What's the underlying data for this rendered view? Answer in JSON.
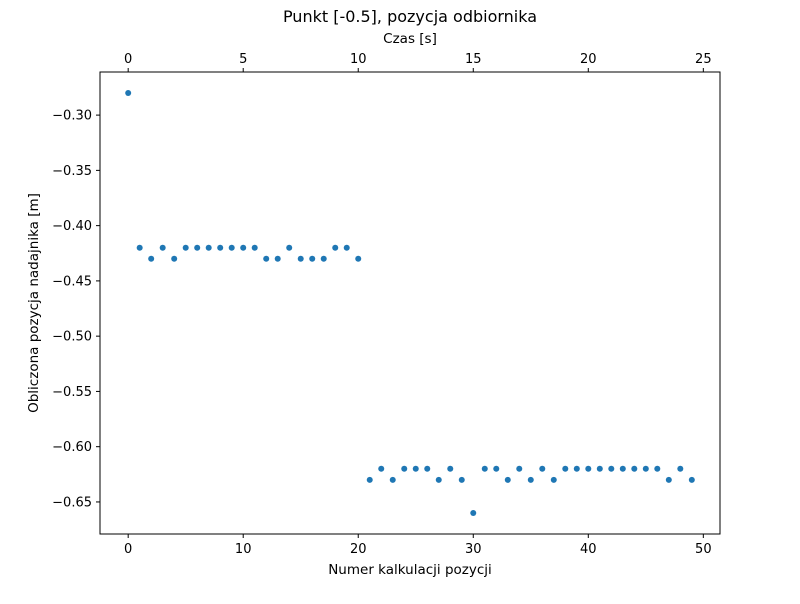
{
  "chart_data": {
    "type": "scatter",
    "title": "Punkt [-0.5], pozycja odbiornika",
    "xlabel": "Numer kalkulacji pozycji",
    "ylabel": "Obliczona pozycja nadajnika [m]",
    "top_xlabel": "Czas [s]",
    "xlim": [
      -2.45,
      51.45
    ],
    "ylim": [
      -0.679,
      -0.261
    ],
    "top_xlim": [
      -1.225,
      25.725
    ],
    "xticks": [
      0,
      10,
      20,
      30,
      40,
      50
    ],
    "xtick_labels": [
      "0",
      "10",
      "20",
      "30",
      "40",
      "50"
    ],
    "top_xticks": [
      0,
      5,
      10,
      15,
      20,
      25
    ],
    "top_xtick_labels": [
      "0",
      "5",
      "10",
      "15",
      "20",
      "25"
    ],
    "yticks": [
      -0.3,
      -0.35,
      -0.4,
      -0.45,
      -0.5,
      -0.55,
      -0.6,
      -0.65
    ],
    "ytick_labels": [
      "−0.30",
      "−0.35",
      "−0.40",
      "−0.45",
      "−0.50",
      "−0.55",
      "−0.60",
      "−0.65"
    ],
    "grid": false,
    "marker_color": "#1f77b4",
    "x": [
      0,
      1,
      2,
      3,
      4,
      5,
      6,
      7,
      8,
      9,
      10,
      11,
      12,
      13,
      14,
      15,
      16,
      17,
      18,
      19,
      20,
      21,
      22,
      23,
      24,
      25,
      26,
      27,
      28,
      29,
      30,
      31,
      32,
      33,
      34,
      35,
      36,
      37,
      38,
      39,
      40,
      41,
      42,
      43,
      44,
      45,
      46,
      47,
      48,
      49
    ],
    "y": [
      -0.28,
      -0.42,
      -0.43,
      -0.42,
      -0.43,
      -0.42,
      -0.42,
      -0.42,
      -0.42,
      -0.42,
      -0.42,
      -0.42,
      -0.43,
      -0.43,
      -0.42,
      -0.43,
      -0.43,
      -0.43,
      -0.42,
      -0.42,
      -0.43,
      -0.63,
      -0.62,
      -0.63,
      -0.62,
      -0.62,
      -0.62,
      -0.63,
      -0.62,
      -0.63,
      -0.66,
      -0.62,
      -0.62,
      -0.63,
      -0.62,
      -0.63,
      -0.62,
      -0.63,
      -0.62,
      -0.62,
      -0.62,
      -0.62,
      -0.62,
      -0.62,
      -0.62,
      -0.62,
      -0.62,
      -0.63,
      -0.62,
      -0.63
    ]
  }
}
